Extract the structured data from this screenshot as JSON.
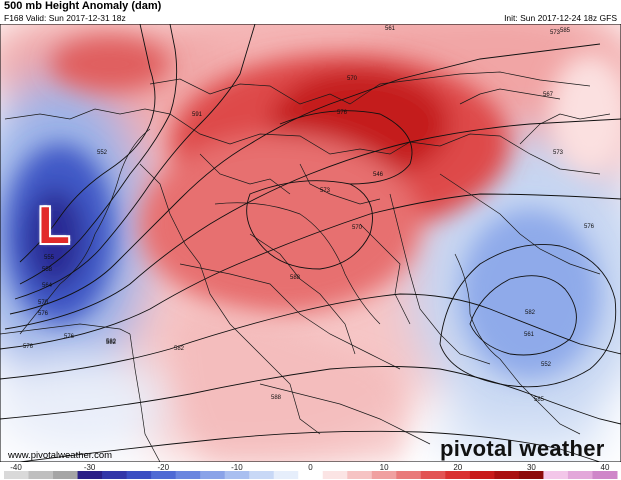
{
  "header": {
    "title": "500 mb Height Anomaly (dam)",
    "valid": "F168 Valid: Sun 2017-12-31 18z",
    "init": "Init: Sun 2017-12-24 18z GFS"
  },
  "map": {
    "low_marker": "L",
    "contour_labels": [
      "585",
      "561",
      "573",
      "591",
      "552",
      "555",
      "558",
      "564",
      "570",
      "576",
      "576",
      "582",
      "582",
      "588",
      "588",
      "570",
      "573",
      "570",
      "576",
      "546",
      "567",
      "573",
      "576",
      "582",
      "561",
      "552",
      "585",
      "576",
      "582"
    ]
  },
  "footer": {
    "website": "www.pivotalweather.com",
    "brand": "pivotal weather"
  },
  "colorbar": {
    "ticks": [
      "-40",
      "-30",
      "-20",
      "-10",
      "0",
      "10",
      "20",
      "30",
      "40"
    ],
    "palette": [
      "#d9d9d9",
      "#bfbfbf",
      "#a5a5a5",
      "#2a1f86",
      "#3236a8",
      "#3b4ec2",
      "#4f6ad4",
      "#6b86df",
      "#8aa3e8",
      "#a9bff0",
      "#c8d8f6",
      "#e6eefb",
      "#ffffff",
      "#fbe4e4",
      "#f6c3c3",
      "#f0a0a0",
      "#e97a7a",
      "#e25454",
      "#d93030",
      "#c81a1a",
      "#a90f10",
      "#8c0a0a",
      "#f3c6e9",
      "#e3a7da",
      "#cf86c9"
    ]
  }
}
